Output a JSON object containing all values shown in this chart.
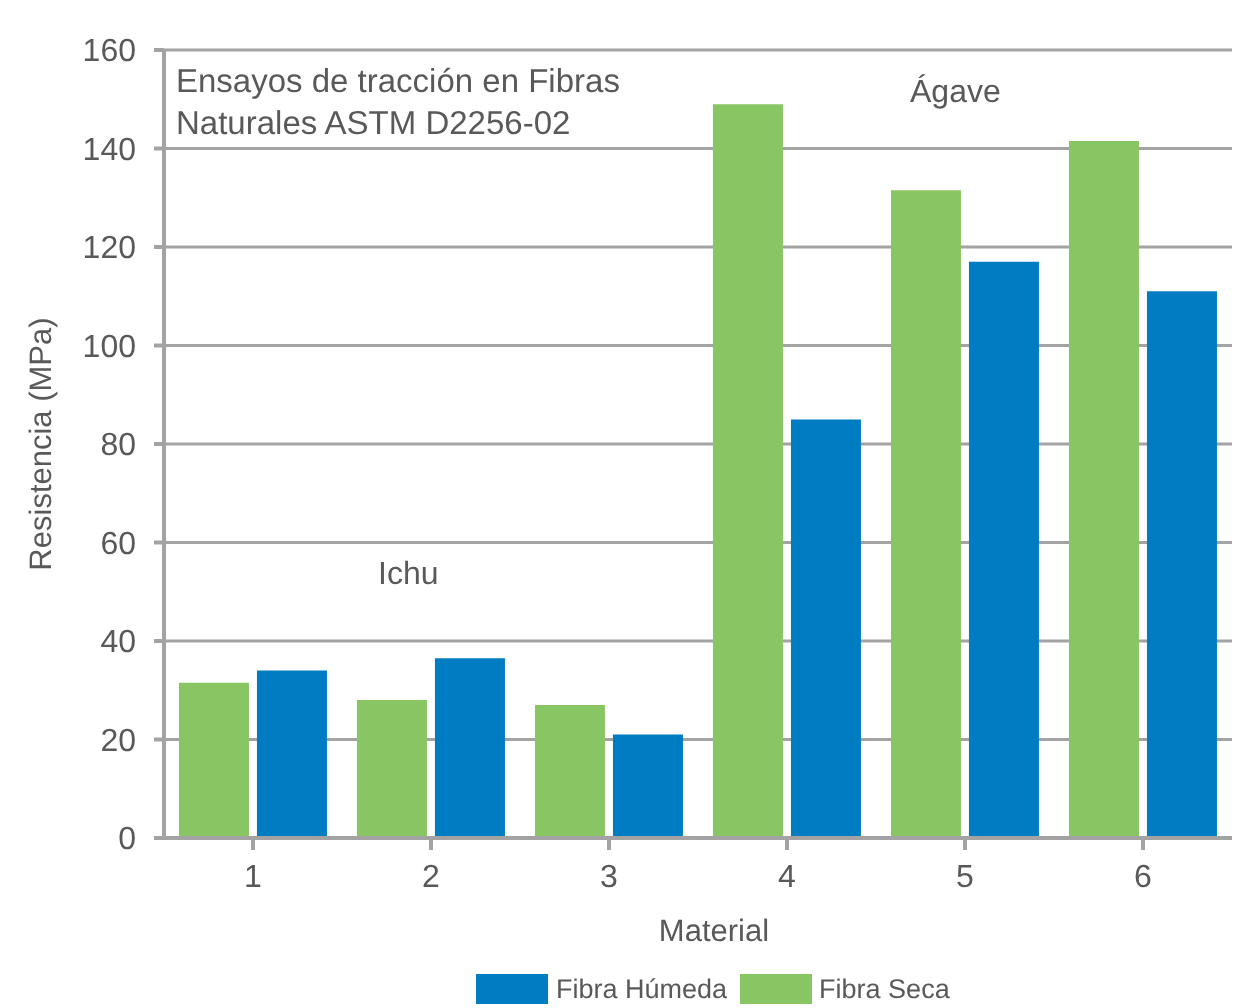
{
  "chart_data": {
    "type": "bar",
    "title": "Ensayos de tracción en Fibras Naturales ASTM D2256-02",
    "xlabel": "Material",
    "ylabel": "Resistencia (MPa)",
    "categories": [
      "1",
      "2",
      "3",
      "4",
      "5",
      "6"
    ],
    "series": [
      {
        "name": "Fibra Seca",
        "color": "#88c664",
        "values": [
          31.5,
          28,
          27,
          149,
          131.5,
          141.5
        ]
      },
      {
        "name": "Fibra Húmeda",
        "color": "#007cc3",
        "values": [
          34,
          36.5,
          21,
          85,
          117,
          111
        ]
      }
    ],
    "ylim": [
      0,
      160
    ],
    "yticks": [
      0,
      20,
      40,
      60,
      80,
      100,
      120,
      140,
      160
    ],
    "grid": "y",
    "legend": "bottom",
    "annotations": [
      "Ichu",
      "Ágave"
    ]
  }
}
